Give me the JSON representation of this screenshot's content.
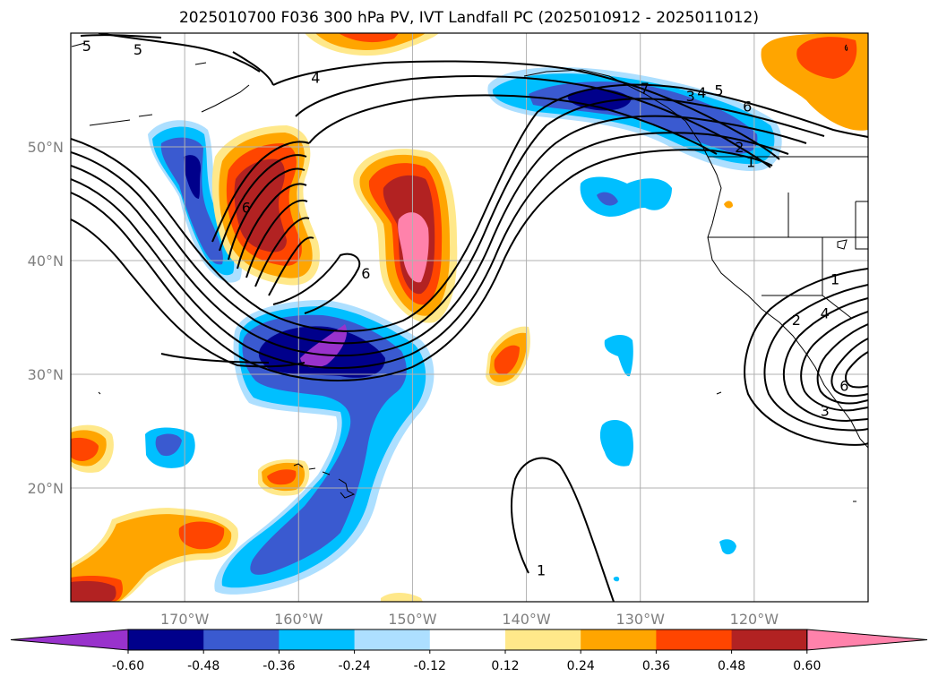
{
  "title": "2025010700 F036 300 hPa PV, IVT Landfall PC (2025010912 - 2025011012)",
  "map": {
    "lon_range": [
      -180,
      -110
    ],
    "lat_range": [
      10,
      60
    ],
    "gridlines": true,
    "lon_ticks": [
      {
        "lon": -170,
        "label": "170°W"
      },
      {
        "lon": -160,
        "label": "160°W"
      },
      {
        "lon": -150,
        "label": "150°W"
      },
      {
        "lon": -140,
        "label": "140°W"
      },
      {
        "lon": -130,
        "label": "130°W"
      },
      {
        "lon": -120,
        "label": "120°W"
      }
    ],
    "lat_ticks": [
      {
        "lat": 20,
        "label": "20°N"
      },
      {
        "lat": 30,
        "label": "30°N"
      },
      {
        "lat": 40,
        "label": "40°N"
      },
      {
        "lat": 50,
        "label": "50°N"
      }
    ],
    "contour_labels": [
      {
        "text": "5",
        "lon": -178.6,
        "lat": 58.9
      },
      {
        "text": "5",
        "lon": -174.1,
        "lat": 58.6
      },
      {
        "text": "4",
        "lon": -158.5,
        "lat": 56.1
      },
      {
        "text": "6",
        "lon": -164.6,
        "lat": 44.7
      },
      {
        "text": "6",
        "lon": -154.1,
        "lat": 38.9
      },
      {
        "text": "7",
        "lon": -129.6,
        "lat": 55.2
      },
      {
        "text": "3",
        "lon": -125.6,
        "lat": 54.5
      },
      {
        "text": "4",
        "lon": -124.6,
        "lat": 54.8
      },
      {
        "text": "5",
        "lon": -123.1,
        "lat": 55.0
      },
      {
        "text": "6",
        "lon": -120.6,
        "lat": 53.6
      },
      {
        "text": "2",
        "lon": -121.3,
        "lat": 50.0
      },
      {
        "text": "1",
        "lon": -120.3,
        "lat": 48.7
      },
      {
        "text": "1",
        "lon": -138.7,
        "lat": 12.8
      },
      {
        "text": "1",
        "lon": -112.9,
        "lat": 38.4
      },
      {
        "text": "2",
        "lon": -116.3,
        "lat": 34.8
      },
      {
        "text": "4",
        "lon": -113.8,
        "lat": 35.4
      },
      {
        "text": "6",
        "lon": -112.1,
        "lat": 29.0
      },
      {
        "text": "3",
        "lon": -113.8,
        "lat": 26.8
      }
    ]
  },
  "colorbar": {
    "ticks": [
      "-0.60",
      "-0.48",
      "-0.36",
      "-0.24",
      "-0.12",
      "0.12",
      "0.24",
      "0.36",
      "0.48",
      "0.60"
    ],
    "colors": [
      "#9932CC",
      "#00008B",
      "#3A5AD0",
      "#00BFFF",
      "#ADDFFF",
      "#FFFFFF",
      "#FFE88A",
      "#FFA500",
      "#FF4500",
      "#B22222",
      "#FF82AB"
    ]
  }
}
